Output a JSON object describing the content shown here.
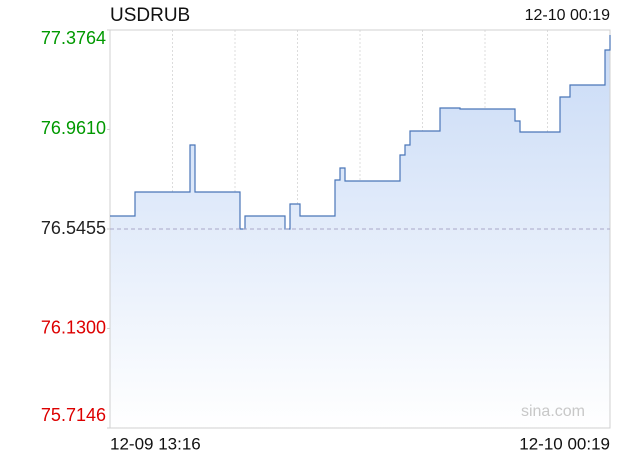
{
  "chart_data": {
    "type": "line",
    "title": "USDRUB",
    "timestamp": "12-10 00:19",
    "watermark": "sina.com",
    "x_labels": [
      "12-09 13:16",
      "12-10 00:19"
    ],
    "ylim": [
      75.7146,
      77.3764
    ],
    "yticks": [
      75.7146,
      {
        "value": 76.13,
        "label": "76.1300"
      },
      76.5455,
      {
        "value": 76.961,
        "label": "76.9610"
      },
      77.3764
    ],
    "prev_close": 76.5455,
    "up_color": "#009900",
    "down_color": "#dd0000",
    "flat_color": "#222222",
    "series": [
      {
        "name": "USDRUB",
        "color": "#4a76b8",
        "values": [
          76.5998,
          76.5998,
          76.5998,
          76.5998,
          76.5998,
          76.7,
          76.7,
          76.7,
          76.7,
          76.7,
          76.7,
          76.7,
          76.7,
          76.7,
          76.7,
          76.7,
          76.8962,
          76.7,
          76.7,
          76.7,
          76.7,
          76.7,
          76.7,
          76.7,
          76.7,
          76.7,
          76.5455,
          76.5998,
          76.5998,
          76.5998,
          76.5998,
          76.5998,
          76.5998,
          76.5998,
          76.5998,
          76.5455,
          76.6499,
          76.6499,
          76.5998,
          76.5998,
          76.5998,
          76.5998,
          76.5998,
          76.5998,
          76.5998,
          76.7501,
          76.8002,
          76.7459,
          76.7459,
          76.7459,
          76.7459,
          76.7459,
          76.7459,
          76.7459,
          76.7459,
          76.7459,
          76.7459,
          76.7459,
          76.8545,
          76.8962,
          76.9547,
          76.9547,
          76.9547,
          76.9547,
          76.9547,
          76.9547,
          77.0507,
          77.0507,
          77.0507,
          77.0507,
          77.0465,
          77.0465,
          77.0465,
          77.0465,
          77.0465,
          77.0465,
          77.0465,
          77.0465,
          77.0465,
          77.0465,
          77.0465,
          76.9964,
          76.9505,
          76.9505,
          76.9505,
          76.9505,
          76.9505,
          76.9505,
          76.9505,
          76.9505,
          77.0967,
          77.0967,
          77.1468,
          77.1468,
          77.1468,
          77.1468,
          77.1468,
          77.1468,
          77.1468,
          77.2929,
          77.3555
        ]
      }
    ]
  }
}
